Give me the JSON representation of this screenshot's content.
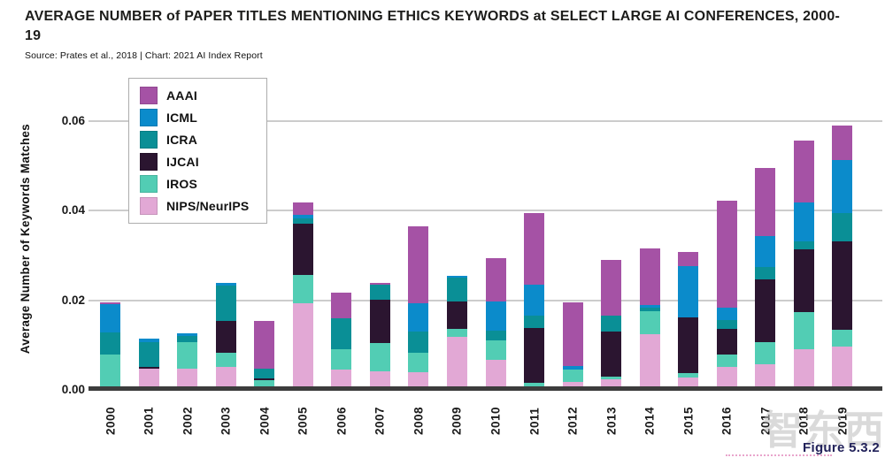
{
  "header": {
    "title": "AVERAGE NUMBER of PAPER TITLES MENTIONING ETHICS KEYWORDS at SELECT LARGE AI CONFERENCES, 2000-19",
    "source": "Source: Prates et al., 2018 | Chart: 2021 AI Index Report"
  },
  "y_axis": {
    "label": "Average Number of Keywords Matches"
  },
  "watermark": {
    "text": "智东西"
  },
  "figure_label": {
    "text": "Figure 5.3.2"
  },
  "chart_data": {
    "type": "bar",
    "stacked": true,
    "title": "Average Number of Paper Titles Mentioning Ethics Keywords at Select Large AI Conferences, 2000-19",
    "xlabel": "",
    "ylabel": "Average Number of Keywords Matches",
    "ylim": [
      0,
      0.06
    ],
    "yticks": [
      0.0,
      0.02,
      0.04,
      0.06
    ],
    "ytick_labels": [
      "0.00",
      "0.02",
      "0.04",
      "0.06"
    ],
    "grid": true,
    "legend_position": "upper-left",
    "categories": [
      "2000",
      "2001",
      "2002",
      "2003",
      "2004",
      "2005",
      "2006",
      "2007",
      "2008",
      "2009",
      "2010",
      "2011",
      "2012",
      "2013",
      "2014",
      "2015",
      "2016",
      "2017",
      "2018",
      "2019"
    ],
    "series": [
      {
        "name": "AAAI",
        "color": "#A552A5",
        "values": [
          0.0004,
          0,
          0,
          0,
          0.0106,
          0.0028,
          0.0058,
          0.0004,
          0.0172,
          0,
          0.0097,
          0.016,
          0.0142,
          0.0124,
          0.0126,
          0.0032,
          0.0238,
          0.0152,
          0.0138,
          0.0078
        ]
      },
      {
        "name": "ICML",
        "color": "#0B8BCB",
        "values": [
          0.0062,
          0.0008,
          0.0006,
          0.0005,
          0,
          0.0008,
          0,
          0,
          0.0063,
          0.0004,
          0.0066,
          0.0068,
          0.0008,
          0,
          0.0007,
          0.0114,
          0.0028,
          0.007,
          0.0088,
          0.0119
        ]
      },
      {
        "name": "ICRA",
        "color": "#0A8F96",
        "values": [
          0.005,
          0.0054,
          0.0014,
          0.0079,
          0.0022,
          0.001,
          0.007,
          0.0032,
          0.0048,
          0.0052,
          0.0022,
          0.0028,
          0,
          0.0036,
          0.0007,
          0,
          0.0019,
          0.0028,
          0.0018,
          0.0062
        ]
      },
      {
        "name": "IJCAI",
        "color": "#2B1530",
        "values": [
          0,
          0.0004,
          0,
          0.0072,
          0.0004,
          0.0116,
          0,
          0.0098,
          0,
          0.0062,
          0,
          0.0122,
          0,
          0.01,
          0,
          0.0124,
          0.0058,
          0.014,
          0.014,
          0.0197
        ]
      },
      {
        "name": "IROS",
        "color": "#52CDB4",
        "values": [
          0.0076,
          0,
          0.0058,
          0.003,
          0.0022,
          0.0062,
          0.0044,
          0.0062,
          0.0043,
          0.0018,
          0.0042,
          0.0013,
          0.0027,
          0.0006,
          0.0052,
          0.001,
          0.0027,
          0.0048,
          0.0083,
          0.0039
        ]
      },
      {
        "name": "NIPS/NeurIPS",
        "color": "#E2A8D5",
        "values": [
          0.0003,
          0.0048,
          0.0048,
          0.0052,
          0,
          0.0194,
          0.0046,
          0.0042,
          0.004,
          0.0118,
          0.0068,
          0.0003,
          0.0018,
          0.0024,
          0.0124,
          0.0028,
          0.0052,
          0.0058,
          0.009,
          0.0096
        ]
      }
    ],
    "totals": [
      0.0195,
      0.0114,
      0.0126,
      0.0238,
      0.0154,
      0.0418,
      0.0218,
      0.0238,
      0.0366,
      0.0254,
      0.0295,
      0.0394,
      0.0195,
      0.029,
      0.0316,
      0.0308,
      0.0422,
      0.0496,
      0.0557,
      0.0591
    ]
  }
}
